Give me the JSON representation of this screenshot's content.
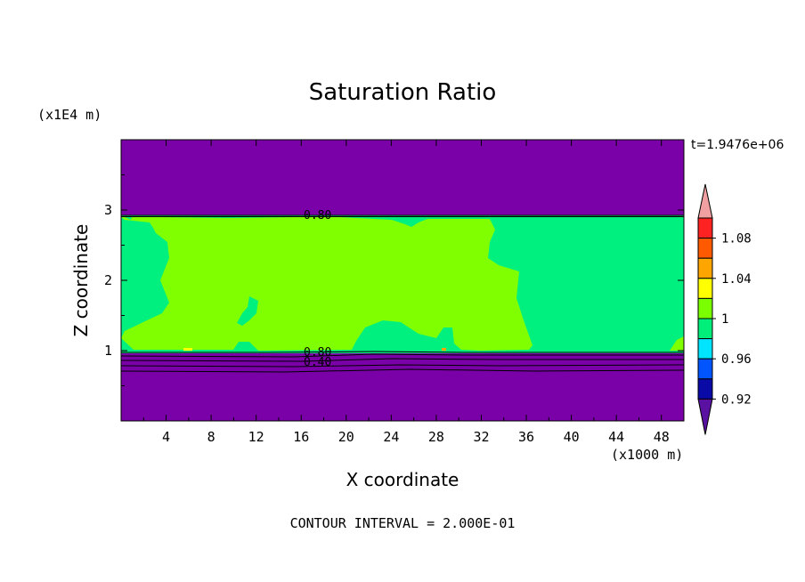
{
  "chart_data": {
    "type": "heatmap",
    "title": "Saturation Ratio",
    "xlabel": "X coordinate",
    "ylabel": "Z coordinate",
    "x_units": "(x1000 m)",
    "y_units": "(x1E4 m)",
    "time_label": "t=1.9476e+06",
    "footer": "CONTOUR INTERVAL = 2.000E-01",
    "xlim": [
      0,
      50
    ],
    "ylim": [
      0,
      4
    ],
    "x_ticks": [
      4,
      8,
      12,
      16,
      20,
      24,
      28,
      32,
      36,
      40,
      44,
      48
    ],
    "y_ticks": [
      1,
      2,
      3
    ],
    "contour_labels": [
      {
        "text": "0.80",
        "x": 17.5,
        "y": 2.93
      },
      {
        "text": "0.80",
        "x": 17.5,
        "y": 0.97
      },
      {
        "text": "0.40",
        "x": 17.5,
        "y": 0.85
      }
    ],
    "colorbar": {
      "tick_labels": [
        "1.08",
        "1.04",
        "1",
        "0.96",
        "0.92"
      ],
      "levels": [
        0.92,
        0.94,
        0.96,
        0.98,
        1.0,
        1.02,
        1.04,
        1.06,
        1.08,
        1.1
      ],
      "colors": [
        "#5a10a0",
        "#0a0aa6",
        "#0055ff",
        "#00e5ff",
        "#00ee7a",
        "#7bff00",
        "#ffff00",
        "#ffa500",
        "#ff5a00",
        "#ff2222",
        "#f0a0a0"
      ],
      "under_color": "#5a10a0",
      "over_color": "#f0a0a0"
    },
    "regions": {
      "upper_dry_layer": {
        "z_range": [
          2.92,
          4
        ],
        "value": "<0.92",
        "color": "#7a00a8"
      },
      "cloud_layer": {
        "z_range": [
          0.97,
          2.92
        ],
        "values": [
          "0.98-1.00",
          "1.00-1.02"
        ],
        "colors": [
          "#00f07f",
          "#80ff00"
        ]
      },
      "lower_dry_layer": {
        "z_range": [
          0,
          0.97
        ],
        "value": "<0.92",
        "color": "#7a00a8"
      }
    }
  }
}
